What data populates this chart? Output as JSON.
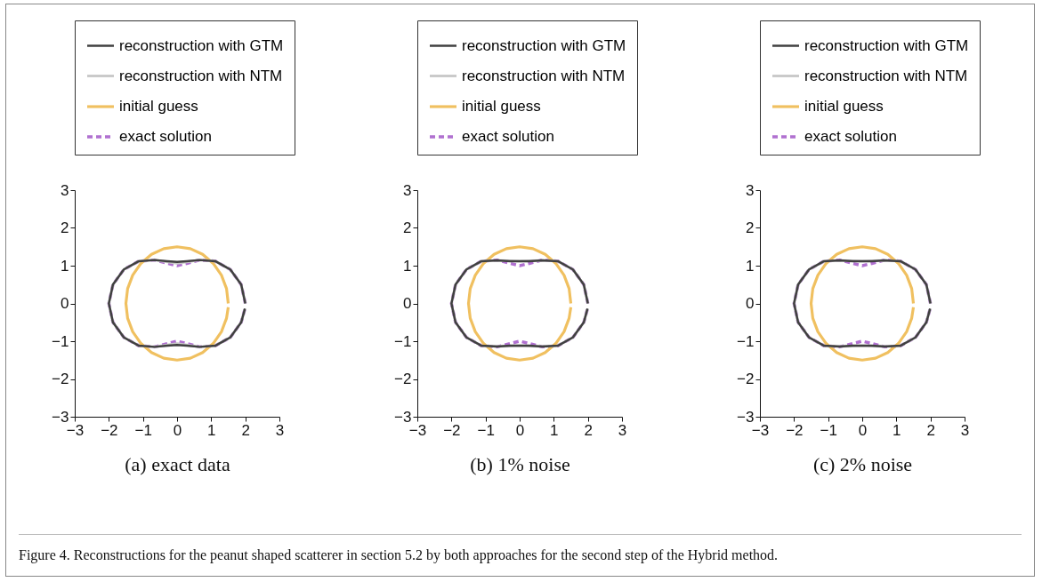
{
  "chart_data": [
    {
      "type": "line",
      "xlabel": "(a) exact data",
      "xlim": [
        -3,
        3
      ],
      "ylim": [
        -3,
        3
      ],
      "xticks": [
        -3,
        -2,
        -1,
        0,
        1,
        2,
        3
      ],
      "yticks": [
        -3,
        -2,
        -1,
        0,
        1,
        2,
        3
      ],
      "legend": "top",
      "annotations": [
        "Figure 4. Reconstructions for the peanut shaped scatterer in section 5.2 by both approaches for the second step of the Hybrid method."
      ],
      "series": [
        {
          "name": "reconstruction with GTM",
          "color": "#404040",
          "line_style": "solid",
          "x": [
            2,
            1.88,
            1.56,
            1.12,
            0.66,
            0.28,
            0,
            -0.28,
            -0.66,
            -1.12,
            -1.56,
            -1.88,
            -2,
            -1.88,
            -1.56,
            -1.12,
            -0.66,
            -0.28,
            0,
            0.28,
            0.66,
            1.12,
            1.56,
            1.88,
            1.99
          ],
          "values": [
            0,
            0.5,
            0.9,
            1.12,
            1.15,
            1.12,
            1.1,
            1.12,
            1.15,
            1.12,
            0.9,
            0.5,
            0,
            -0.5,
            -0.9,
            -1.12,
            -1.15,
            -1.12,
            -1.1,
            -1.12,
            -1.15,
            -1.12,
            -0.9,
            -0.5,
            -0.14
          ]
        },
        {
          "name": "reconstruction with NTM",
          "color": "#c8c8c8",
          "line_style": "solid",
          "x": [
            2,
            1.88,
            1.56,
            1.12,
            0.66,
            0.28,
            0,
            -0.28,
            -0.66,
            -1.12,
            -1.56,
            -1.88,
            -2,
            -1.88,
            -1.56,
            -1.12,
            -0.66,
            -0.28,
            0,
            0.28,
            0.66,
            1.12,
            1.56,
            1.88,
            1.99
          ],
          "values": [
            0,
            0.5,
            0.9,
            1.12,
            1.15,
            1.1,
            1.06,
            1.1,
            1.15,
            1.12,
            0.9,
            0.5,
            0,
            -0.5,
            -0.9,
            -1.12,
            -1.15,
            -1.1,
            -1.06,
            -1.1,
            -1.15,
            -1.12,
            -0.9,
            -0.5,
            -0.14
          ]
        },
        {
          "name": "initial guess",
          "color": "#f0c060",
          "line_style": "solid",
          "x": [
            1.5,
            1.45,
            1.3,
            1.06,
            0.75,
            0.39,
            0,
            -0.39,
            -0.75,
            -1.06,
            -1.3,
            -1.45,
            -1.5,
            -1.45,
            -1.3,
            -1.06,
            -0.75,
            -0.39,
            0,
            0.39,
            0.75,
            1.06,
            1.3,
            1.45,
            1.5
          ],
          "values": [
            0,
            0.39,
            0.75,
            1.06,
            1.3,
            1.45,
            1.5,
            1.45,
            1.3,
            1.06,
            0.75,
            0.39,
            0,
            -0.39,
            -0.75,
            -1.06,
            -1.3,
            -1.45,
            -1.5,
            -1.45,
            -1.3,
            -1.06,
            -0.75,
            -0.39,
            -0.1
          ]
        },
        {
          "name": "exact solution",
          "color": "#b070d0",
          "line_style": "dashed",
          "x": [
            2,
            1.88,
            1.56,
            1.12,
            0.66,
            0.28,
            0,
            -0.28,
            -0.66,
            -1.12,
            -1.56,
            -1.88,
            -2,
            -1.88,
            -1.56,
            -1.12,
            -0.66,
            -0.28,
            0,
            0.28,
            0.66,
            1.12,
            1.56,
            1.88,
            1.99
          ],
          "values": [
            0,
            0.5,
            0.9,
            1.12,
            1.15,
            1.06,
            1,
            1.06,
            1.15,
            1.12,
            0.9,
            0.5,
            0,
            -0.5,
            -0.9,
            -1.12,
            -1.15,
            -1.06,
            -1,
            -1.06,
            -1.15,
            -1.12,
            -0.9,
            -0.5,
            -0.14
          ]
        }
      ]
    },
    {
      "type": "line",
      "xlabel": "(b) 1% noise",
      "xlim": [
        -3,
        3
      ],
      "ylim": [
        -3,
        3
      ],
      "xticks": [
        -3,
        -2,
        -1,
        0,
        1,
        2,
        3
      ],
      "yticks": [
        -3,
        -2,
        -1,
        0,
        1,
        2,
        3
      ],
      "legend": "top",
      "series": [
        {
          "name": "reconstruction with GTM",
          "color": "#404040",
          "line_style": "solid",
          "x": [
            2,
            1.88,
            1.56,
            1.12,
            0.66,
            0.28,
            0,
            -0.28,
            -0.66,
            -1.12,
            -1.56,
            -1.88,
            -2,
            -1.88,
            -1.56,
            -1.12,
            -0.66,
            -0.28,
            0,
            0.28,
            0.66,
            1.12,
            1.56,
            1.88,
            1.99
          ],
          "values": [
            0,
            0.5,
            0.9,
            1.12,
            1.14,
            1.12,
            1.12,
            1.12,
            1.14,
            1.12,
            0.9,
            0.5,
            0,
            -0.5,
            -0.9,
            -1.12,
            -1.14,
            -1.12,
            -1.12,
            -1.12,
            -1.14,
            -1.12,
            -0.9,
            -0.5,
            -0.14
          ]
        },
        {
          "name": "reconstruction with NTM",
          "color": "#c8c8c8",
          "line_style": "solid",
          "x": [
            2,
            1.88,
            1.56,
            1.12,
            0.66,
            0.28,
            0,
            -0.28,
            -0.66,
            -1.12,
            -1.56,
            -1.88,
            -2,
            -1.88,
            -1.56,
            -1.12,
            -0.66,
            -0.28,
            0,
            0.28,
            0.66,
            1.12,
            1.56,
            1.88,
            1.99
          ],
          "values": [
            0,
            0.5,
            0.9,
            1.12,
            1.14,
            1.13,
            1.12,
            1.13,
            1.14,
            1.12,
            0.9,
            0.5,
            0,
            -0.5,
            -0.9,
            -1.12,
            -1.14,
            -1.13,
            -1.12,
            -1.13,
            -1.14,
            -1.12,
            -0.9,
            -0.5,
            -0.14
          ]
        },
        {
          "name": "initial guess",
          "color": "#f0c060",
          "line_style": "solid",
          "x": [
            1.5,
            1.45,
            1.3,
            1.06,
            0.75,
            0.39,
            0,
            -0.39,
            -0.75,
            -1.06,
            -1.3,
            -1.45,
            -1.5,
            -1.45,
            -1.3,
            -1.06,
            -0.75,
            -0.39,
            0,
            0.39,
            0.75,
            1.06,
            1.3,
            1.45,
            1.5
          ],
          "values": [
            0,
            0.39,
            0.75,
            1.06,
            1.3,
            1.45,
            1.5,
            1.45,
            1.3,
            1.06,
            0.75,
            0.39,
            0,
            -0.39,
            -0.75,
            -1.06,
            -1.3,
            -1.45,
            -1.5,
            -1.45,
            -1.3,
            -1.06,
            -0.75,
            -0.39,
            -0.1
          ]
        },
        {
          "name": "exact solution",
          "color": "#b070d0",
          "line_style": "dashed",
          "x": [
            2,
            1.88,
            1.56,
            1.12,
            0.66,
            0.28,
            0,
            -0.28,
            -0.66,
            -1.12,
            -1.56,
            -1.88,
            -2,
            -1.88,
            -1.56,
            -1.12,
            -0.66,
            -0.28,
            0,
            0.28,
            0.66,
            1.12,
            1.56,
            1.88,
            1.99
          ],
          "values": [
            0,
            0.5,
            0.9,
            1.12,
            1.15,
            1.06,
            1,
            1.06,
            1.15,
            1.12,
            0.9,
            0.5,
            0,
            -0.5,
            -0.9,
            -1.12,
            -1.15,
            -1.06,
            -1,
            -1.06,
            -1.15,
            -1.12,
            -0.9,
            -0.5,
            -0.14
          ]
        }
      ]
    },
    {
      "type": "line",
      "xlabel": "(c) 2% noise",
      "xlim": [
        -3,
        3
      ],
      "ylim": [
        -3,
        3
      ],
      "xticks": [
        -3,
        -2,
        -1,
        0,
        1,
        2,
        3
      ],
      "yticks": [
        -3,
        -2,
        -1,
        0,
        1,
        2,
        3
      ],
      "legend": "top",
      "series": [
        {
          "name": "reconstruction with GTM",
          "color": "#404040",
          "line_style": "solid",
          "x": [
            2,
            1.88,
            1.56,
            1.12,
            0.66,
            0.28,
            0,
            -0.28,
            -0.66,
            -1.12,
            -1.56,
            -1.88,
            -2,
            -1.88,
            -1.56,
            -1.12,
            -0.66,
            -0.28,
            0,
            0.28,
            0.66,
            1.12,
            1.56,
            1.88,
            1.99
          ],
          "values": [
            0,
            0.5,
            0.9,
            1.12,
            1.14,
            1.12,
            1.12,
            1.12,
            1.14,
            1.12,
            0.9,
            0.5,
            0,
            -0.5,
            -0.9,
            -1.12,
            -1.14,
            -1.12,
            -1.12,
            -1.12,
            -1.14,
            -1.12,
            -0.9,
            -0.5,
            -0.14
          ]
        },
        {
          "name": "reconstruction with NTM",
          "color": "#c8c8c8",
          "line_style": "solid",
          "x": [
            2,
            1.88,
            1.56,
            1.12,
            0.66,
            0.28,
            0,
            -0.28,
            -0.66,
            -1.12,
            -1.56,
            -1.88,
            -2,
            -1.88,
            -1.56,
            -1.12,
            -0.66,
            -0.28,
            0,
            0.28,
            0.66,
            1.12,
            1.56,
            1.88,
            1.99
          ],
          "values": [
            0,
            0.5,
            0.9,
            1.12,
            1.14,
            1.13,
            1.12,
            1.13,
            1.14,
            1.12,
            0.9,
            0.5,
            0,
            -0.5,
            -0.9,
            -1.12,
            -1.14,
            -1.13,
            -1.12,
            -1.13,
            -1.14,
            -1.12,
            -0.9,
            -0.5,
            -0.14
          ]
        },
        {
          "name": "initial guess",
          "color": "#f0c060",
          "line_style": "solid",
          "x": [
            1.5,
            1.45,
            1.3,
            1.06,
            0.75,
            0.39,
            0,
            -0.39,
            -0.75,
            -1.06,
            -1.3,
            -1.45,
            -1.5,
            -1.45,
            -1.3,
            -1.06,
            -0.75,
            -0.39,
            0,
            0.39,
            0.75,
            1.06,
            1.3,
            1.45,
            1.5
          ],
          "values": [
            0,
            0.39,
            0.75,
            1.06,
            1.3,
            1.45,
            1.5,
            1.45,
            1.3,
            1.06,
            0.75,
            0.39,
            0,
            -0.39,
            -0.75,
            -1.06,
            -1.3,
            -1.45,
            -1.5,
            -1.45,
            -1.3,
            -1.06,
            -0.75,
            -0.39,
            -0.1
          ]
        },
        {
          "name": "exact solution",
          "color": "#b070d0",
          "line_style": "dashed",
          "x": [
            2,
            1.88,
            1.56,
            1.12,
            0.66,
            0.28,
            0,
            -0.28,
            -0.66,
            -1.12,
            -1.56,
            -1.88,
            -2,
            -1.88,
            -1.56,
            -1.12,
            -0.66,
            -0.28,
            0,
            0.28,
            0.66,
            1.12,
            1.56,
            1.88,
            1.99
          ],
          "values": [
            0,
            0.5,
            0.9,
            1.12,
            1.15,
            1.06,
            1,
            1.06,
            1.15,
            1.12,
            0.9,
            0.5,
            0,
            -0.5,
            -0.9,
            -1.12,
            -1.15,
            -1.06,
            -1,
            -1.06,
            -1.15,
            -1.12,
            -0.9,
            -0.5,
            -0.14
          ]
        }
      ]
    }
  ]
}
